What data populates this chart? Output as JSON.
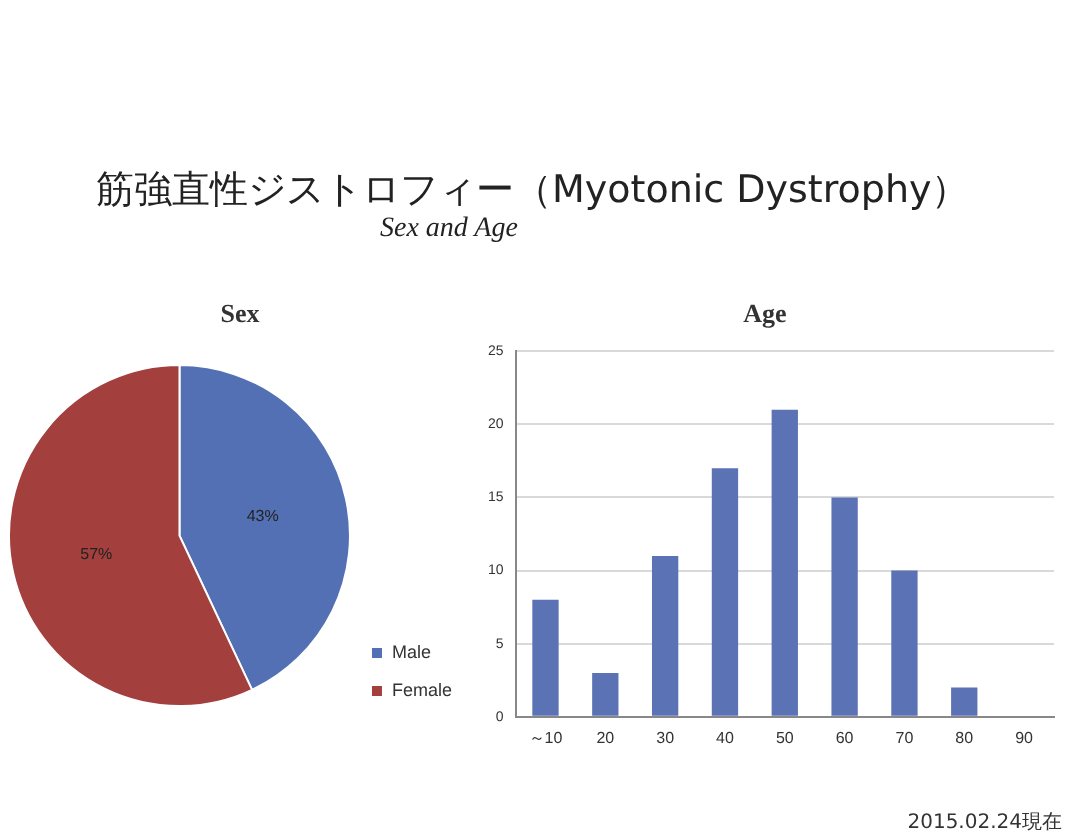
{
  "chart_data": [
    {
      "type": "pie",
      "title": "Sex",
      "annotations": [
        "筋強直性ジストロフィー（Myotonic Dystrophy）",
        "Sex and Age"
      ],
      "categories": [
        "Male",
        "Female"
      ],
      "values": [
        43,
        57
      ],
      "colors": [
        "#5470b4",
        "#a3403e"
      ],
      "value_labels": [
        "43%",
        "57%"
      ],
      "legend": "bottom right"
    },
    {
      "type": "bar",
      "title": "Age",
      "annotations": [
        "2015.02.24現在"
      ],
      "categories": [
        "～10",
        "20",
        "30",
        "40",
        "50",
        "60",
        "70",
        "80",
        "90"
      ],
      "values": [
        8,
        3,
        11,
        17,
        21,
        15,
        10,
        2,
        0
      ],
      "color": "#5b72b5",
      "ylim": [
        0,
        25
      ],
      "yticks": [
        0,
        5,
        10,
        15,
        20,
        25
      ],
      "grid": "y",
      "legend": false
    }
  ]
}
